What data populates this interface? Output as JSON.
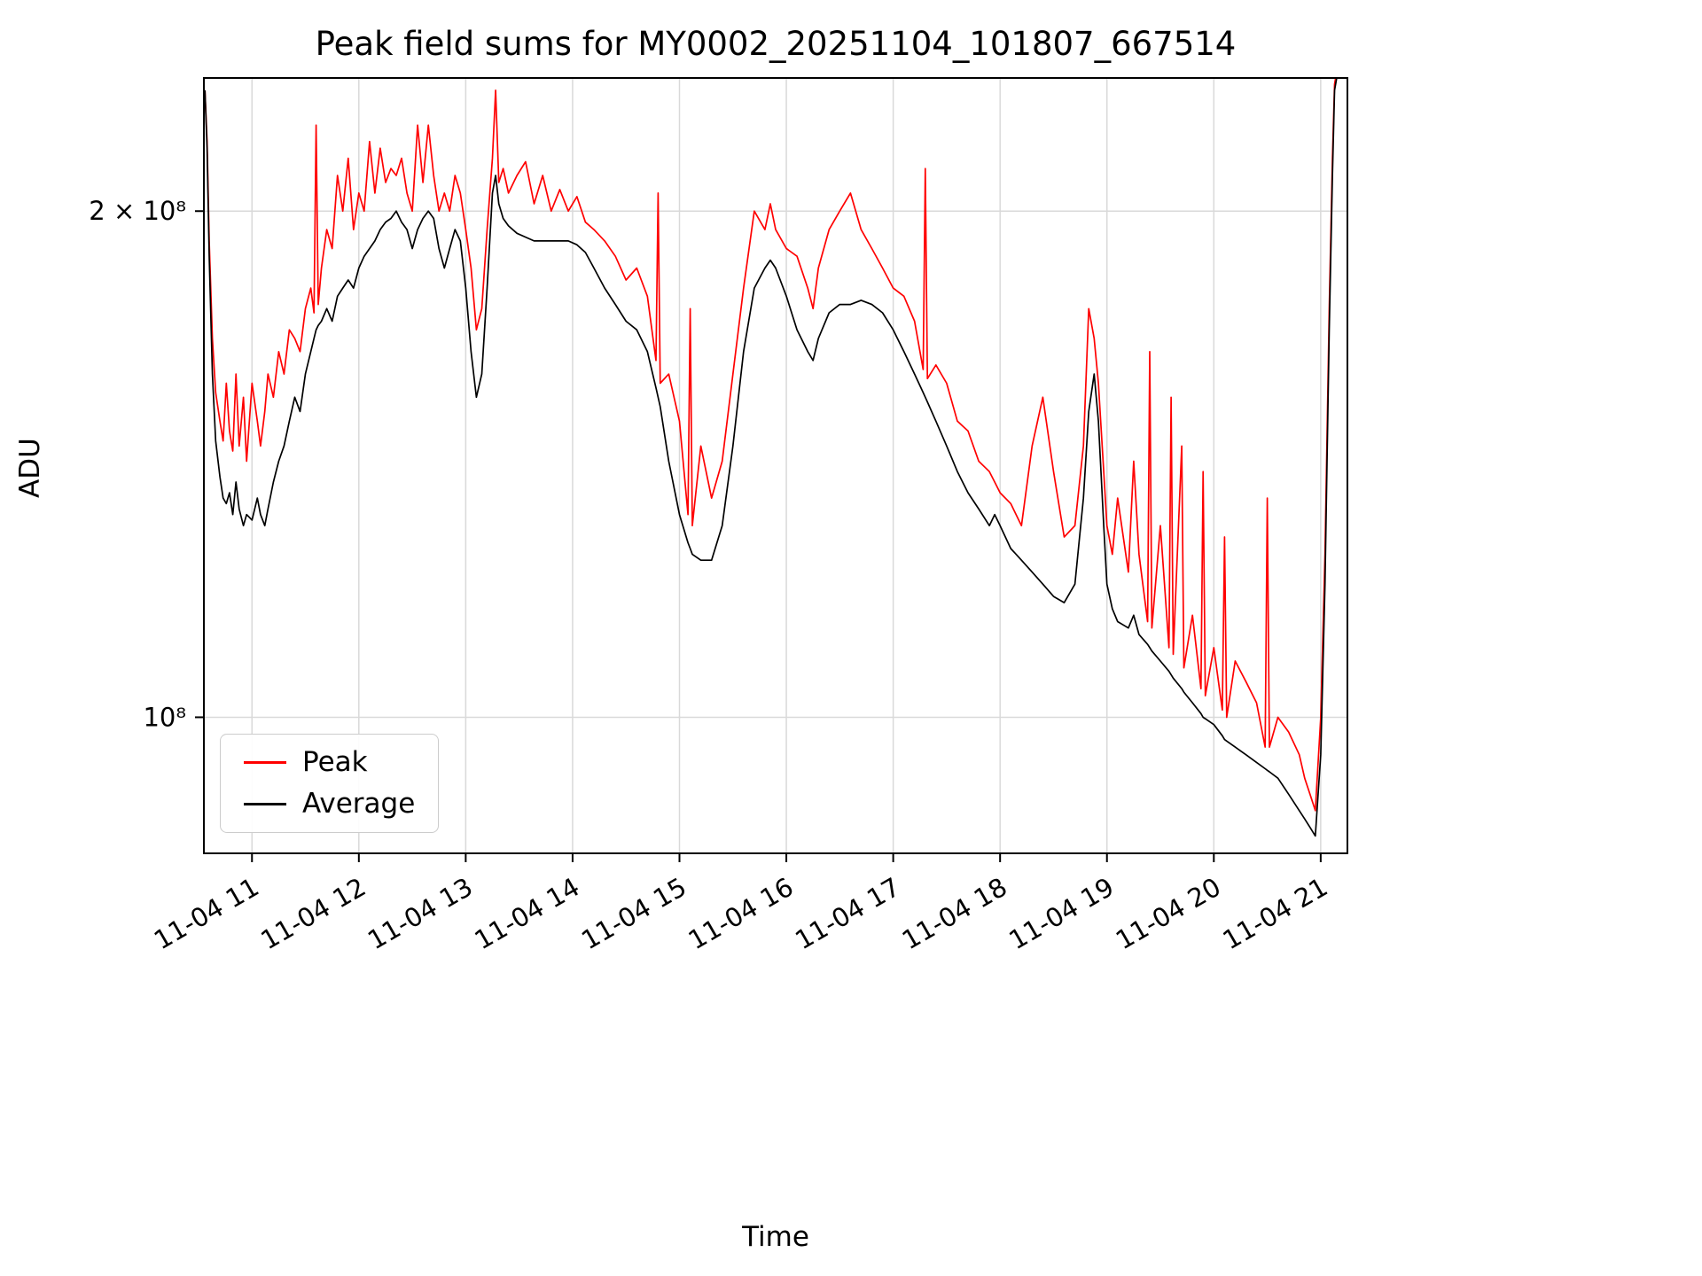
{
  "chart_data": {
    "type": "line",
    "title": "Peak field sums for MY0002_20251104_101807_667514",
    "xlabel": "Time",
    "ylabel": "ADU",
    "yscale": "log",
    "grid": true,
    "legend": {
      "position": "lower left",
      "entries": [
        "Peak",
        "Average"
      ]
    },
    "ylim": [
      83000000.0,
      240000000.0
    ],
    "xlim_hours": [
      10.55,
      21.25
    ],
    "x_ticks": {
      "hours": [
        11,
        12,
        13,
        14,
        15,
        16,
        17,
        18,
        19,
        20,
        21
      ],
      "labels": [
        "11-04 11",
        "11-04 12",
        "11-04 13",
        "11-04 14",
        "11-04 15",
        "11-04 16",
        "11-04 17",
        "11-04 18",
        "11-04 19",
        "11-04 20",
        "11-04 21"
      ]
    },
    "y_ticks": [
      {
        "value": 100000000.0,
        "label": "10⁸"
      },
      {
        "value": 200000000.0,
        "label": "2 × 10⁸"
      }
    ],
    "x_hours": [
      10.56,
      10.58,
      10.6,
      10.63,
      10.66,
      10.7,
      10.73,
      10.76,
      10.79,
      10.82,
      10.85,
      10.88,
      10.92,
      10.95,
      11.0,
      11.05,
      11.08,
      11.12,
      11.15,
      11.2,
      11.25,
      11.3,
      11.35,
      11.4,
      11.45,
      11.5,
      11.55,
      11.58,
      11.6,
      11.62,
      11.65,
      11.7,
      11.75,
      11.8,
      11.85,
      11.9,
      11.95,
      12.0,
      12.05,
      12.1,
      12.15,
      12.2,
      12.25,
      12.3,
      12.35,
      12.4,
      12.45,
      12.5,
      12.55,
      12.6,
      12.65,
      12.7,
      12.75,
      12.8,
      12.85,
      12.9,
      12.95,
      13.0,
      13.05,
      13.1,
      13.15,
      13.2,
      13.25,
      13.28,
      13.31,
      13.35,
      13.4,
      13.48,
      13.56,
      13.64,
      13.72,
      13.8,
      13.88,
      13.96,
      14.04,
      14.12,
      14.2,
      14.3,
      14.4,
      14.5,
      14.6,
      14.7,
      14.78,
      14.8,
      14.82,
      14.9,
      15.0,
      15.08,
      15.1,
      15.12,
      15.2,
      15.3,
      15.4,
      15.5,
      15.6,
      15.7,
      15.8,
      15.85,
      15.9,
      16.0,
      16.1,
      16.2,
      16.25,
      16.3,
      16.4,
      16.5,
      16.6,
      16.7,
      16.8,
      16.9,
      17.0,
      17.1,
      17.2,
      17.28,
      17.3,
      17.32,
      17.4,
      17.5,
      17.6,
      17.7,
      17.8,
      17.9,
      17.95,
      18.0,
      18.1,
      18.2,
      18.3,
      18.4,
      18.5,
      18.6,
      18.7,
      18.78,
      18.83,
      18.88,
      18.92,
      18.97,
      19.0,
      19.05,
      19.1,
      19.2,
      19.25,
      19.3,
      19.38,
      19.4,
      19.42,
      19.5,
      19.58,
      19.6,
      19.62,
      19.7,
      19.72,
      19.8,
      19.88,
      19.9,
      19.92,
      20.0,
      20.08,
      20.1,
      20.12,
      20.2,
      20.3,
      20.4,
      20.48,
      20.5,
      20.52,
      20.6,
      20.7,
      20.8,
      20.85,
      20.9,
      20.95,
      21.0,
      21.04,
      21.08,
      21.11,
      21.13,
      21.16
    ],
    "series": [
      {
        "name": "Peak",
        "color": "#ff0000",
        "values": [
          236000000.0,
          220000000.0,
          192000000.0,
          168000000.0,
          156000000.0,
          150000000.0,
          146000000.0,
          158000000.0,
          148000000.0,
          144000000.0,
          160000000.0,
          145000000.0,
          155000000.0,
          142000000.0,
          158000000.0,
          150000000.0,
          145000000.0,
          152000000.0,
          160000000.0,
          155000000.0,
          165000000.0,
          160000000.0,
          170000000.0,
          168000000.0,
          165000000.0,
          175000000.0,
          180000000.0,
          174000000.0,
          225000000.0,
          176000000.0,
          185000000.0,
          195000000.0,
          190000000.0,
          210000000.0,
          200000000.0,
          215000000.0,
          195000000.0,
          205000000.0,
          200000000.0,
          220000000.0,
          205000000.0,
          218000000.0,
          208000000.0,
          212000000.0,
          210000000.0,
          215000000.0,
          205000000.0,
          200000000.0,
          225000000.0,
          208000000.0,
          225000000.0,
          210000000.0,
          200000000.0,
          205000000.0,
          200000000.0,
          210000000.0,
          205000000.0,
          195000000.0,
          185000000.0,
          170000000.0,
          175000000.0,
          195000000.0,
          215000000.0,
          236000000.0,
          208000000.0,
          212000000.0,
          205000000.0,
          210000000.0,
          214000000.0,
          202000000.0,
          210000000.0,
          200000000.0,
          206000000.0,
          200000000.0,
          204000000.0,
          197000000.0,
          195000000.0,
          192000000.0,
          188000000.0,
          182000000.0,
          185000000.0,
          178000000.0,
          163000000.0,
          205000000.0,
          158000000.0,
          160000000.0,
          150000000.0,
          132000000.0,
          175000000.0,
          130000000.0,
          145000000.0,
          135000000.0,
          142000000.0,
          160000000.0,
          180000000.0,
          200000000.0,
          195000000.0,
          202000000.0,
          195000000.0,
          190000000.0,
          188000000.0,
          180000000.0,
          175000000.0,
          185000000.0,
          195000000.0,
          200000000.0,
          205000000.0,
          195000000.0,
          190000000.0,
          185000000.0,
          180000000.0,
          178000000.0,
          172000000.0,
          161000000.0,
          212000000.0,
          159000000.0,
          162000000.0,
          158000000.0,
          150000000.0,
          148000000.0,
          142000000.0,
          140000000.0,
          138000000.0,
          136000000.0,
          134000000.0,
          130000000.0,
          145000000.0,
          155000000.0,
          140000000.0,
          128000000.0,
          130000000.0,
          145000000.0,
          175000000.0,
          168000000.0,
          158000000.0,
          140000000.0,
          130000000.0,
          125000000.0,
          135000000.0,
          122000000.0,
          142000000.0,
          125000000.0,
          114000000.0,
          165000000.0,
          113000000.0,
          130000000.0,
          110000000.0,
          155000000.0,
          109000000.0,
          145000000.0,
          107000000.0,
          115000000.0,
          104000000.0,
          140000000.0,
          103000000.0,
          110000000.0,
          101000000.0,
          128000000.0,
          100000000.0,
          108000000.0,
          105000000.0,
          102000000.0,
          96000000.0,
          135000000.0,
          96000000.0,
          100000000.0,
          98000000.0,
          95000000.0,
          92000000.0,
          90000000.0,
          88000000.0,
          100000000.0,
          125000000.0,
          175000000.0,
          215000000.0,
          238000000.0,
          244000000.0
        ]
      },
      {
        "name": "Average",
        "color": "#000000",
        "values": [
          236000000.0,
          218000000.0,
          188000000.0,
          160000000.0,
          146000000.0,
          139000000.0,
          135000000.0,
          134000000.0,
          136000000.0,
          132000000.0,
          138000000.0,
          133000000.0,
          130000000.0,
          132000000.0,
          131000000.0,
          135000000.0,
          132000000.0,
          130000000.0,
          133000000.0,
          138000000.0,
          142000000.0,
          145000000.0,
          150000000.0,
          155000000.0,
          152000000.0,
          160000000.0,
          165000000.0,
          168000000.0,
          170000000.0,
          171000000.0,
          172000000.0,
          175000000.0,
          172000000.0,
          178000000.0,
          180000000.0,
          182000000.0,
          180000000.0,
          185000000.0,
          188000000.0,
          190000000.0,
          192000000.0,
          195000000.0,
          197000000.0,
          198000000.0,
          200000000.0,
          197000000.0,
          195000000.0,
          190000000.0,
          195000000.0,
          198000000.0,
          200000000.0,
          198000000.0,
          190000000.0,
          185000000.0,
          190000000.0,
          195000000.0,
          192000000.0,
          180000000.0,
          165000000.0,
          155000000.0,
          160000000.0,
          180000000.0,
          205000000.0,
          210000000.0,
          202000000.0,
          198000000.0,
          196000000.0,
          194000000.0,
          193000000.0,
          192000000.0,
          192000000.0,
          192000000.0,
          192000000.0,
          192000000.0,
          191000000.0,
          189000000.0,
          185000000.0,
          180000000.0,
          176000000.0,
          172000000.0,
          170000000.0,
          165000000.0,
          157000000.0,
          155000000.0,
          153000000.0,
          142000000.0,
          132000000.0,
          127000000.0,
          126000000.0,
          125000000.0,
          124000000.0,
          124000000.0,
          130000000.0,
          145000000.0,
          165000000.0,
          180000000.0,
          185000000.0,
          187000000.0,
          185000000.0,
          178000000.0,
          170000000.0,
          165000000.0,
          163000000.0,
          168000000.0,
          174000000.0,
          176000000.0,
          176000000.0,
          177000000.0,
          176000000.0,
          174000000.0,
          170000000.0,
          165000000.0,
          160000000.0,
          156000000.0,
          155000000.0,
          154000000.0,
          150000000.0,
          145000000.0,
          140000000.0,
          136000000.0,
          133000000.0,
          130000000.0,
          132000000.0,
          130000000.0,
          126000000.0,
          124000000.0,
          122000000.0,
          120000000.0,
          118000000.0,
          117000000.0,
          120000000.0,
          135000000.0,
          152000000.0,
          160000000.0,
          150000000.0,
          130000000.0,
          120000000.0,
          116000000.0,
          114000000.0,
          113000000.0,
          115000000.0,
          112000000.0,
          110500000.0,
          110000000.0,
          109500000.0,
          108000000.0,
          106500000.0,
          106000000.0,
          105500000.0,
          104000000.0,
          103500000.0,
          102000000.0,
          100500000.0,
          100000000.0,
          99800000.0,
          99000000.0,
          97500000.0,
          97000000.0,
          96800000.0,
          96000000.0,
          95000000.0,
          94000000.0,
          93200000.0,
          93000000.0,
          92800000.0,
          92000000.0,
          90000000.0,
          88000000.0,
          87000000.0,
          86000000.0,
          85000000.0,
          95000000.0,
          120000000.0,
          170000000.0,
          210000000.0,
          236000000.0,
          242000000.0
        ]
      }
    ]
  }
}
